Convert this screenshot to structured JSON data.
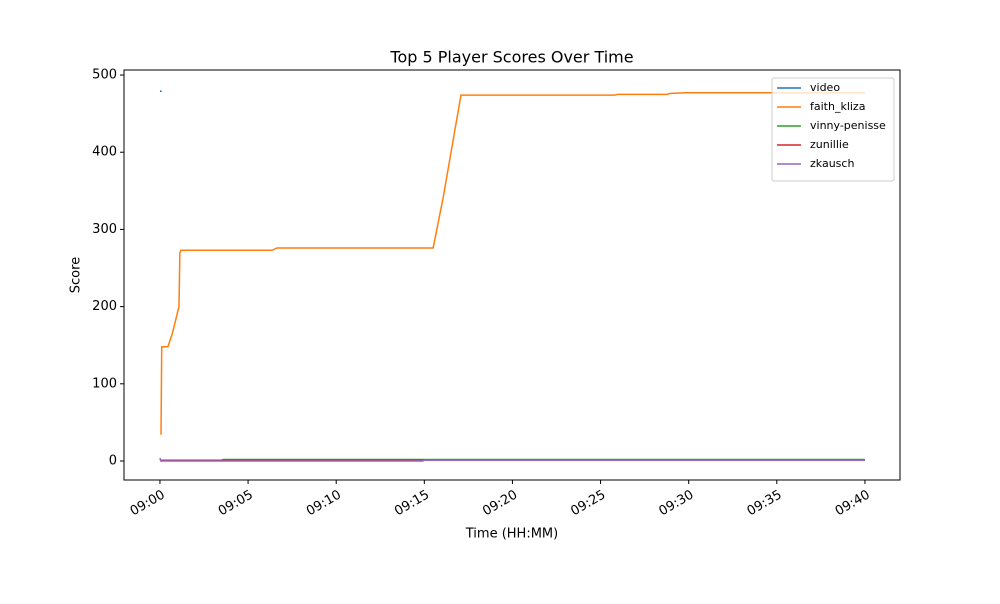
{
  "chart_data": {
    "type": "line",
    "title": "Top 5 Player Scores Over Time",
    "xlabel": "Time (HH:MM)",
    "ylabel": "Score",
    "xlim": [
      -2.04,
      41.99
    ],
    "ylim": [
      -24.6,
      506.5
    ],
    "xticks": [
      {
        "value": 0,
        "label": "09:00"
      },
      {
        "value": 5,
        "label": "09:05"
      },
      {
        "value": 10,
        "label": "09:10"
      },
      {
        "value": 15,
        "label": "09:15"
      },
      {
        "value": 20,
        "label": "09:20"
      },
      {
        "value": 25,
        "label": "09:25"
      },
      {
        "value": 30,
        "label": "09:30"
      },
      {
        "value": 35,
        "label": "09:35"
      },
      {
        "value": 40,
        "label": "09:40"
      }
    ],
    "yticks": [
      0,
      100,
      200,
      300,
      400,
      500
    ],
    "grid": false,
    "legend": "upper right",
    "series": [
      {
        "name": "video",
        "color": "#1f77b4",
        "x": [
          0,
          0.1
        ],
        "values": [
          479,
          479
        ]
      },
      {
        "name": "faith_kliza",
        "color": "#ff7f0e",
        "x": [
          0.06,
          0.1,
          0.45,
          0.7,
          1.08,
          1.13,
          1.19,
          6.35,
          6.64,
          15.5,
          16.06,
          17.08,
          25.8,
          26.0,
          28.8,
          28.9,
          29.8,
          40
        ],
        "values": [
          34,
          148,
          148,
          165,
          200,
          270,
          273,
          273,
          276,
          276,
          340,
          474,
          474,
          475,
          475,
          476,
          477,
          477
        ]
      },
      {
        "name": "vinny-penisse",
        "color": "#2ca02c",
        "x": [
          0,
          3.5,
          3.6,
          40
        ],
        "values": [
          1,
          1,
          2,
          2
        ]
      },
      {
        "name": "zunillie",
        "color": "#d62728",
        "x": [
          0,
          40
        ],
        "values": [
          1,
          1
        ]
      },
      {
        "name": "zkausch",
        "color": "#9467bd",
        "x": [
          0,
          0.05,
          14.9,
          15,
          40
        ],
        "values": [
          4,
          0,
          0,
          1,
          1
        ]
      }
    ]
  }
}
